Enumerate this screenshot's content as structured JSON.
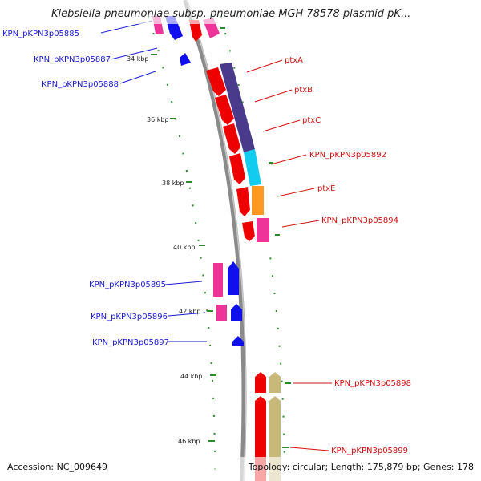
{
  "title": "Klebsiella pneumoniae subsp. pneumoniae MGH 78578 plasmid pK...",
  "footer": {
    "accession": "Accession: NC_009649",
    "summary": "Topology: circular; Length: 175,879 bp; Genes: 178"
  },
  "ticks": [
    "34 kbp",
    "36 kbp",
    "38 kbp",
    "40 kbp",
    "42 kbp",
    "44 kbp",
    "46 kbp"
  ],
  "left_labels": [
    "KPN_pKPN3p05885",
    "KPN_pKPN3p05887",
    "KPN_pKPN3p05888",
    "KPN_pKPN3p05895",
    "KPN_pKPN3p05896",
    "KPN_pKPN3p05897"
  ],
  "right_labels": [
    "ptxA",
    "ptxB",
    "ptxC",
    "KPN_pKPN3p05892",
    "ptxE",
    "KPN_pKPN3p05894",
    "KPN_pKPN3p05898",
    "KPN_pKPN3p05899"
  ],
  "colors": {
    "backbone": "#8a8a8a",
    "gc_dots": "#2d8a2d",
    "cds_forward": "#ee0000",
    "cds_reverse": "#1010ee",
    "cog_pink": "#ee3399",
    "cog_purple": "#4a3a8c",
    "cog_orange": "#ff9922",
    "cog_cyan": "#11ccee",
    "cog_khaki": "#c8b87a",
    "label_left": "#1a1ad0",
    "label_right": "#d01010"
  }
}
